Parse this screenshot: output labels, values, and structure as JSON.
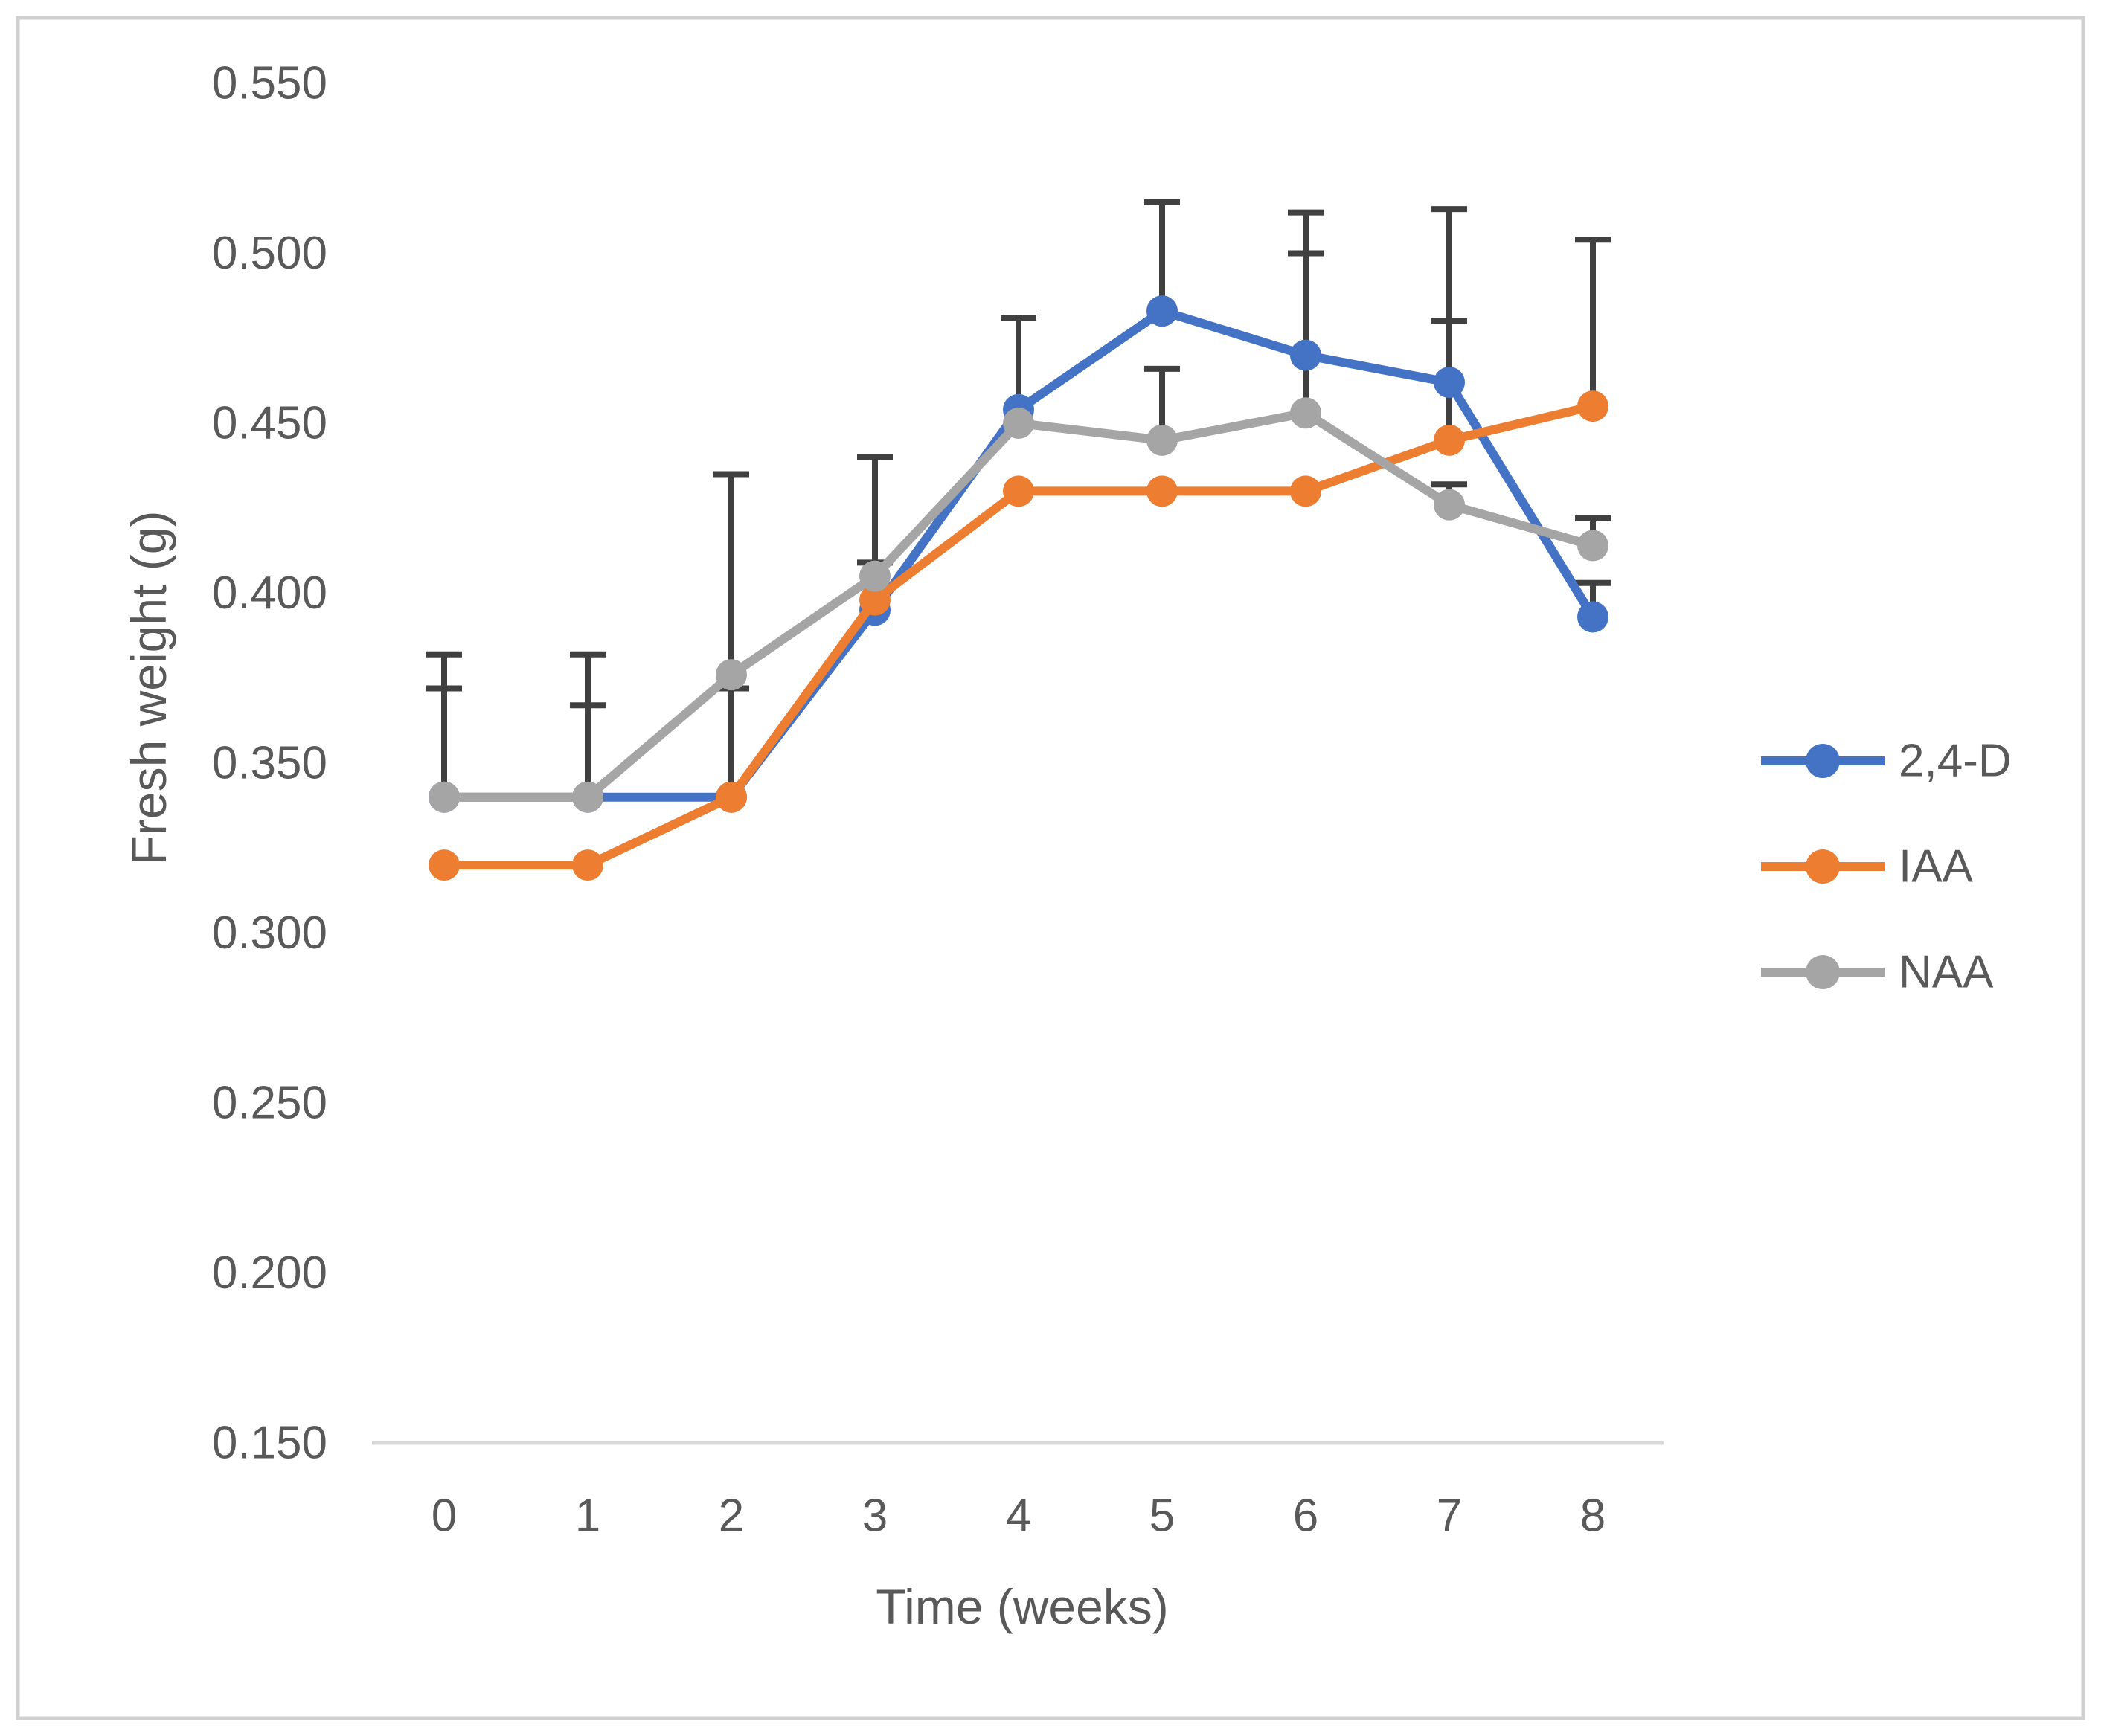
{
  "chart_data": {
    "type": "line",
    "title": "",
    "xlabel": "Time (weeks)",
    "ylabel": "Fresh weight (g)",
    "x": [
      0,
      1,
      2,
      3,
      4,
      5,
      6,
      7,
      8
    ],
    "x_tick_labels": [
      "0",
      "1",
      "2",
      "3",
      "4",
      "5",
      "6",
      "7",
      "8"
    ],
    "ylim": [
      0.15,
      0.55
    ],
    "ytick_step": 0.05,
    "ytick_labels": [
      "0.150",
      "0.200",
      "0.250",
      "0.300",
      "0.350",
      "0.400",
      "0.450",
      "0.500",
      "0.550"
    ],
    "grid": false,
    "legend_position": "right",
    "colors": {
      "axis_line": "#D9D9D9",
      "frame_border": "#D0D0D0",
      "text": "#595959",
      "error_bar": "#404040"
    },
    "series": [
      {
        "name": "2,4-D",
        "color": "#4472C4",
        "values": [
          0.34,
          0.34,
          0.34,
          0.395,
          0.454,
          0.483,
          0.47,
          0.462,
          0.393
        ]
      },
      {
        "name": "IAA",
        "color": "#ED7D31",
        "values": [
          0.32,
          0.32,
          0.34,
          0.398,
          0.43,
          0.43,
          0.43,
          0.445,
          0.455
        ]
      },
      {
        "name": "NAA",
        "color": "#A5A5A5",
        "values": [
          0.34,
          0.34,
          0.376,
          0.405,
          0.45,
          0.445,
          0.453,
          0.426,
          0.414
        ]
      }
    ],
    "error_bars": [
      {
        "week": 0,
        "from": 0.34,
        "to": 0.382,
        "caps": [
          0.382,
          0.372
        ]
      },
      {
        "week": 1,
        "from": 0.34,
        "to": 0.382,
        "caps": [
          0.382,
          0.367
        ]
      },
      {
        "week": 2,
        "from": 0.34,
        "to": 0.435,
        "caps": [
          0.435,
          0.372
        ]
      },
      {
        "week": 3,
        "from": 0.395,
        "to": 0.44,
        "caps": [
          0.44,
          0.409
        ]
      },
      {
        "week": 4,
        "from": 0.452,
        "to": 0.481,
        "caps": [
          0.481
        ]
      },
      {
        "week": 5,
        "from": 0.483,
        "to": 0.515,
        "caps": [
          0.515
        ]
      },
      {
        "week": 5,
        "from": 0.445,
        "to": 0.466,
        "caps": [
          0.466
        ]
      },
      {
        "week": 6,
        "from": 0.453,
        "to": 0.512,
        "caps": [
          0.512,
          0.5
        ]
      },
      {
        "week": 7,
        "from": 0.445,
        "to": 0.513,
        "caps": [
          0.513,
          0.48
        ]
      },
      {
        "week": 7,
        "from": 0.426,
        "to": 0.432,
        "caps": [
          0.432
        ]
      },
      {
        "week": 8,
        "from": 0.455,
        "to": 0.504,
        "caps": [
          0.504
        ]
      },
      {
        "week": 8,
        "from": 0.414,
        "to": 0.422,
        "caps": [
          0.422
        ]
      },
      {
        "week": 8,
        "from": 0.393,
        "to": 0.403,
        "caps": [
          0.403
        ]
      }
    ]
  }
}
